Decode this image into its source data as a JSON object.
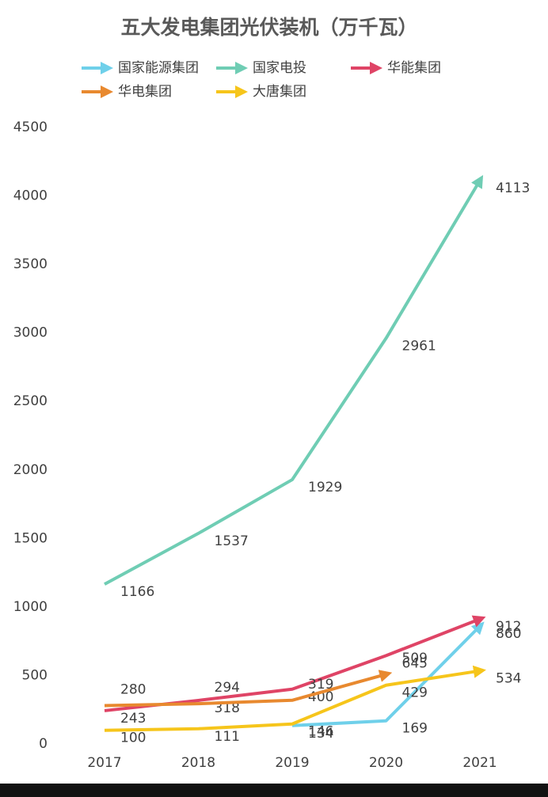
{
  "chart_data": {
    "type": "line",
    "title": "五大发电集团光伏装机（万千瓦）",
    "categories": [
      "2017",
      "2018",
      "2019",
      "2020",
      "2021"
    ],
    "series": [
      {
        "name": "国家能源集团",
        "color": "#6fd0ea",
        "values": [
          null,
          null,
          134,
          169,
          860
        ]
      },
      {
        "name": "国家电投",
        "color": "#6fcdb4",
        "values": [
          1166,
          1537,
          1929,
          2961,
          4113
        ]
      },
      {
        "name": "华能集团",
        "color": "#df4466",
        "values": [
          243,
          318,
          400,
          645,
          912
        ]
      },
      {
        "name": "华电集团",
        "color": "#e8892f",
        "values": [
          280,
          294,
          319,
          509,
          null
        ]
      },
      {
        "name": "大唐集团",
        "color": "#f6c51b",
        "values": [
          100,
          111,
          146,
          429,
          534
        ]
      }
    ],
    "ylim": [
      0,
      4500
    ],
    "yticks": [
      0,
      500,
      1000,
      1500,
      2000,
      2500,
      3000,
      3500,
      4000,
      4500
    ]
  }
}
